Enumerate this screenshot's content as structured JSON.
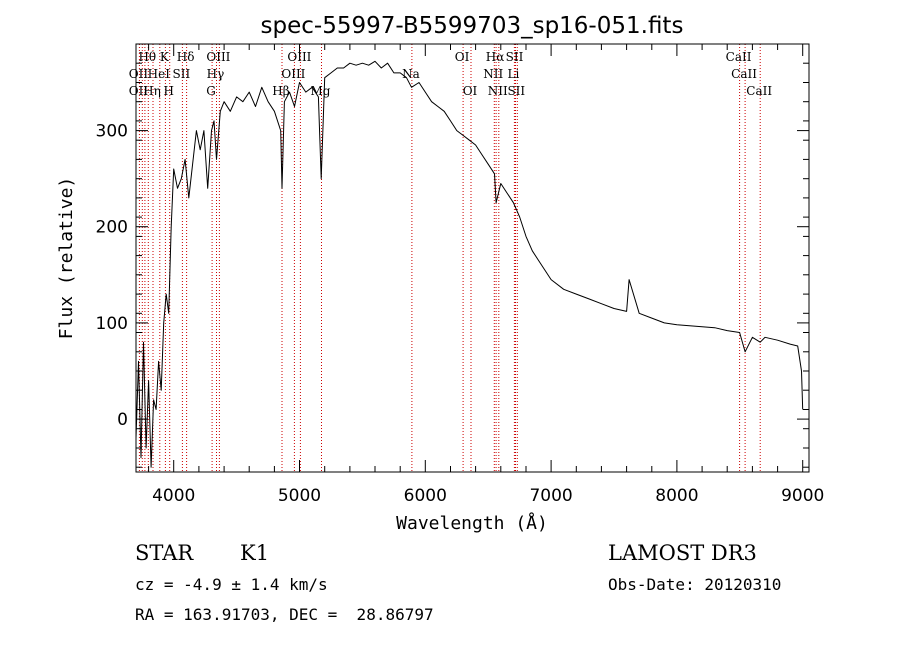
{
  "chart_data": {
    "type": "line",
    "title": "spec-55997-B5599703_sp16-051.fits",
    "xlabel": "Wavelength (Å)",
    "ylabel": "Flux (relative)",
    "xlim": [
      3700,
      9050
    ],
    "ylim": [
      -55,
      390
    ],
    "grid": false,
    "x_ticks": [
      4000,
      5000,
      6000,
      7000,
      8000,
      9000
    ],
    "y_ticks": [
      0,
      100,
      200,
      300
    ],
    "series": [
      {
        "name": "flux",
        "x": [
          3700,
          3720,
          3740,
          3760,
          3780,
          3800,
          3820,
          3840,
          3860,
          3880,
          3900,
          3920,
          3940,
          3960,
          3980,
          4000,
          4030,
          4060,
          4090,
          4120,
          4150,
          4180,
          4210,
          4240,
          4270,
          4300,
          4320,
          4340,
          4370,
          4400,
          4450,
          4500,
          4550,
          4600,
          4650,
          4700,
          4750,
          4800,
          4850,
          4861,
          4880,
          4920,
          4960,
          5000,
          5050,
          5100,
          5150,
          5172,
          5200,
          5250,
          5300,
          5350,
          5400,
          5450,
          5500,
          5550,
          5600,
          5650,
          5700,
          5750,
          5800,
          5850,
          5890,
          5950,
          6000,
          6050,
          6100,
          6150,
          6200,
          6250,
          6300,
          6350,
          6400,
          6450,
          6500,
          6550,
          6563,
          6600,
          6650,
          6700,
          6750,
          6800,
          6850,
          6900,
          6950,
          7000,
          7100,
          7200,
          7300,
          7400,
          7500,
          7600,
          7620,
          7700,
          7800,
          7900,
          8000,
          8100,
          8200,
          8300,
          8400,
          8498,
          8542,
          8600,
          8662,
          8700,
          8800,
          8900,
          8960,
          8990,
          9000
        ],
        "values": [
          -20,
          60,
          -40,
          80,
          -30,
          40,
          -50,
          20,
          10,
          60,
          30,
          100,
          130,
          110,
          200,
          260,
          240,
          250,
          270,
          230,
          265,
          300,
          280,
          300,
          240,
          300,
          310,
          270,
          320,
          330,
          320,
          335,
          330,
          340,
          325,
          345,
          330,
          320,
          300,
          240,
          330,
          340,
          325,
          350,
          340,
          345,
          335,
          250,
          355,
          360,
          365,
          365,
          370,
          368,
          370,
          368,
          372,
          365,
          370,
          360,
          360,
          355,
          345,
          350,
          340,
          330,
          325,
          320,
          310,
          300,
          295,
          290,
          285,
          275,
          265,
          255,
          225,
          245,
          235,
          225,
          210,
          190,
          175,
          165,
          155,
          145,
          135,
          130,
          125,
          120,
          115,
          112,
          145,
          110,
          105,
          100,
          98,
          97,
          96,
          95,
          92,
          90,
          70,
          85,
          80,
          85,
          82,
          78,
          76,
          50,
          10
        ]
      }
    ],
    "line_labels": [
      {
        "text": "Hθ",
        "x": 3798,
        "row": 1
      },
      {
        "text": "K",
        "x": 3934,
        "row": 1
      },
      {
        "text": "Hδ",
        "x": 4102,
        "row": 1
      },
      {
        "text": "OIII",
        "x": 4363,
        "row": 1
      },
      {
        "text": "OIII",
        "x": 5007,
        "row": 1
      },
      {
        "text": "OI",
        "x": 6300,
        "row": 1
      },
      {
        "text": "Hα",
        "x": 6563,
        "row": 1
      },
      {
        "text": "SII",
        "x": 6717,
        "row": 1
      },
      {
        "text": "CaII",
        "x": 8498,
        "row": 1
      },
      {
        "text": "OII",
        "x": 3727,
        "row": 2
      },
      {
        "text": "HeI",
        "x": 3889,
        "row": 2
      },
      {
        "text": "SII",
        "x": 4069,
        "row": 2
      },
      {
        "text": "Hγ",
        "x": 4340,
        "row": 2
      },
      {
        "text": "OIII",
        "x": 4959,
        "row": 2
      },
      {
        "text": "Na",
        "x": 5893,
        "row": 2
      },
      {
        "text": "NII",
        "x": 6548,
        "row": 2
      },
      {
        "text": "Li",
        "x": 6708,
        "row": 2
      },
      {
        "text": "CaII",
        "x": 8542,
        "row": 2
      },
      {
        "text": "OII",
        "x": 3727,
        "row": 3
      },
      {
        "text": "Hη",
        "x": 3835,
        "row": 3
      },
      {
        "text": "H",
        "x": 3968,
        "row": 3
      },
      {
        "text": "G",
        "x": 4305,
        "row": 3
      },
      {
        "text": "Hβ",
        "x": 4861,
        "row": 3
      },
      {
        "text": "Mg",
        "x": 5175,
        "row": 3
      },
      {
        "text": "OI",
        "x": 6363,
        "row": 3
      },
      {
        "text": "NII",
        "x": 6584,
        "row": 3
      },
      {
        "text": "SII",
        "x": 6731,
        "row": 3
      },
      {
        "text": "CaII",
        "x": 8662,
        "row": 3
      }
    ],
    "marker_lines": [
      3727,
      3750,
      3771,
      3798,
      3835,
      3889,
      3934,
      3968,
      4069,
      4102,
      4305,
      4340,
      4363,
      4861,
      4959,
      5007,
      5175,
      5893,
      6300,
      6363,
      6548,
      6563,
      6584,
      6708,
      6717,
      6731,
      8498,
      8542,
      8662
    ]
  },
  "info": {
    "object_class": "STAR",
    "subclass": "K1",
    "survey": "LAMOST DR3",
    "cz": "cz = -4.9 ± 1.4 km/s",
    "obs_date": "Obs-Date: 20120310",
    "coords": "RA = 163.91703, DEC =  28.86797"
  },
  "colors": {
    "axis": "#000000",
    "spectrum": "#000000",
    "marker": "#cc0000",
    "background": "#ffffff"
  }
}
